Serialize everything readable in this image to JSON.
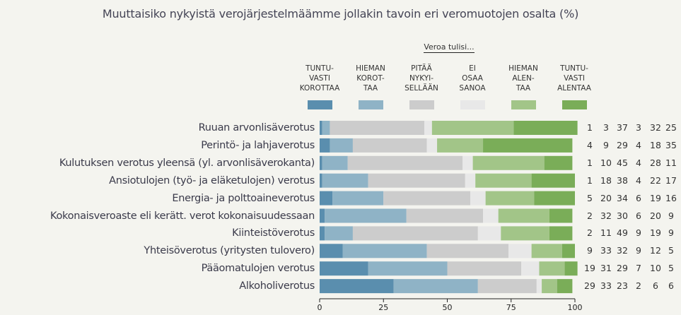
{
  "chart_data": {
    "type": "bar",
    "orientation": "horizontal",
    "stacked": true,
    "title": "Muuttaisiko nykyistä verojärjestelmäämme jollakin tavoin eri veromuotojen osalta (%)",
    "legend_title": "Veroa tulisi...",
    "xlabel": "",
    "ylabel": "",
    "xlim": [
      0,
      100
    ],
    "x_ticks": [
      "0",
      "25",
      "50",
      "75",
      "100"
    ],
    "categories": [
      "Ruuan arvonlisäverotus",
      "Perintö- ja lahjaverotus",
      "Kulutuksen verotus yleensä (yl. arvonlisäverokanta)",
      "Ansiotulojen (työ- ja eläketulojen) verotus",
      "Energia- ja polttoaineverotus",
      "Kokonaisveroaste eli kerätt. verot kokonaisuudessaan",
      "Kiinteistöverotus",
      "Yhteisöverotus (yritysten tulovero)",
      "Pääomatulojen verotus",
      "Alkoholiverotus"
    ],
    "series": [
      {
        "name": "TUNTU-\nVASTI\nKOROTTAA",
        "color": "#5a8eae",
        "values": [
          1,
          4,
          1,
          1,
          5,
          2,
          2,
          9,
          19,
          29
        ]
      },
      {
        "name": "HIEMAN\nKOROT-\nTAA",
        "color": "#8fb3c6",
        "values": [
          3,
          9,
          10,
          18,
          20,
          32,
          11,
          33,
          31,
          33
        ]
      },
      {
        "name": "PITÄÄ\nNYKYI-\nSELLÄÄN",
        "color": "#cccccc",
        "values": [
          37,
          29,
          45,
          38,
          34,
          30,
          49,
          32,
          29,
          23
        ]
      },
      {
        "name": "EI\nOSAA\nSANOA",
        "color": "#e8e8e8",
        "values": [
          3,
          4,
          4,
          4,
          6,
          6,
          9,
          9,
          7,
          2
        ]
      },
      {
        "name": "HIEMAN\nALEN-\nTAA",
        "color": "#a2c588",
        "values": [
          32,
          18,
          28,
          22,
          19,
          20,
          19,
          12,
          10,
          6
        ]
      },
      {
        "name": "TUNTU-\nVASTI\nALENTAA",
        "color": "#7aad58",
        "values": [
          25,
          35,
          11,
          17,
          16,
          9,
          9,
          5,
          5,
          6
        ]
      }
    ],
    "value_table": [
      [
        "1",
        "3",
        "37",
        "3",
        "32",
        "25"
      ],
      [
        "4",
        "9",
        "29",
        "4",
        "18",
        "35"
      ],
      [
        "1",
        "10",
        "45",
        "4",
        "28",
        "11"
      ],
      [
        "1",
        "18",
        "38",
        "4",
        "22",
        "17"
      ],
      [
        "5",
        "20",
        "34",
        "6",
        "19",
        "16"
      ],
      [
        "2",
        "32",
        "30",
        "6",
        "20",
        "9"
      ],
      [
        "2",
        "11",
        "49",
        "9",
        "19",
        "9"
      ],
      [
        "9",
        "33",
        "32",
        "9",
        "12",
        "5"
      ],
      [
        "19",
        "31",
        "29",
        "7",
        "10",
        "5"
      ],
      [
        "29",
        "33",
        "23",
        "2",
        "6",
        "6"
      ]
    ],
    "grid": false,
    "legend_position": "top"
  }
}
